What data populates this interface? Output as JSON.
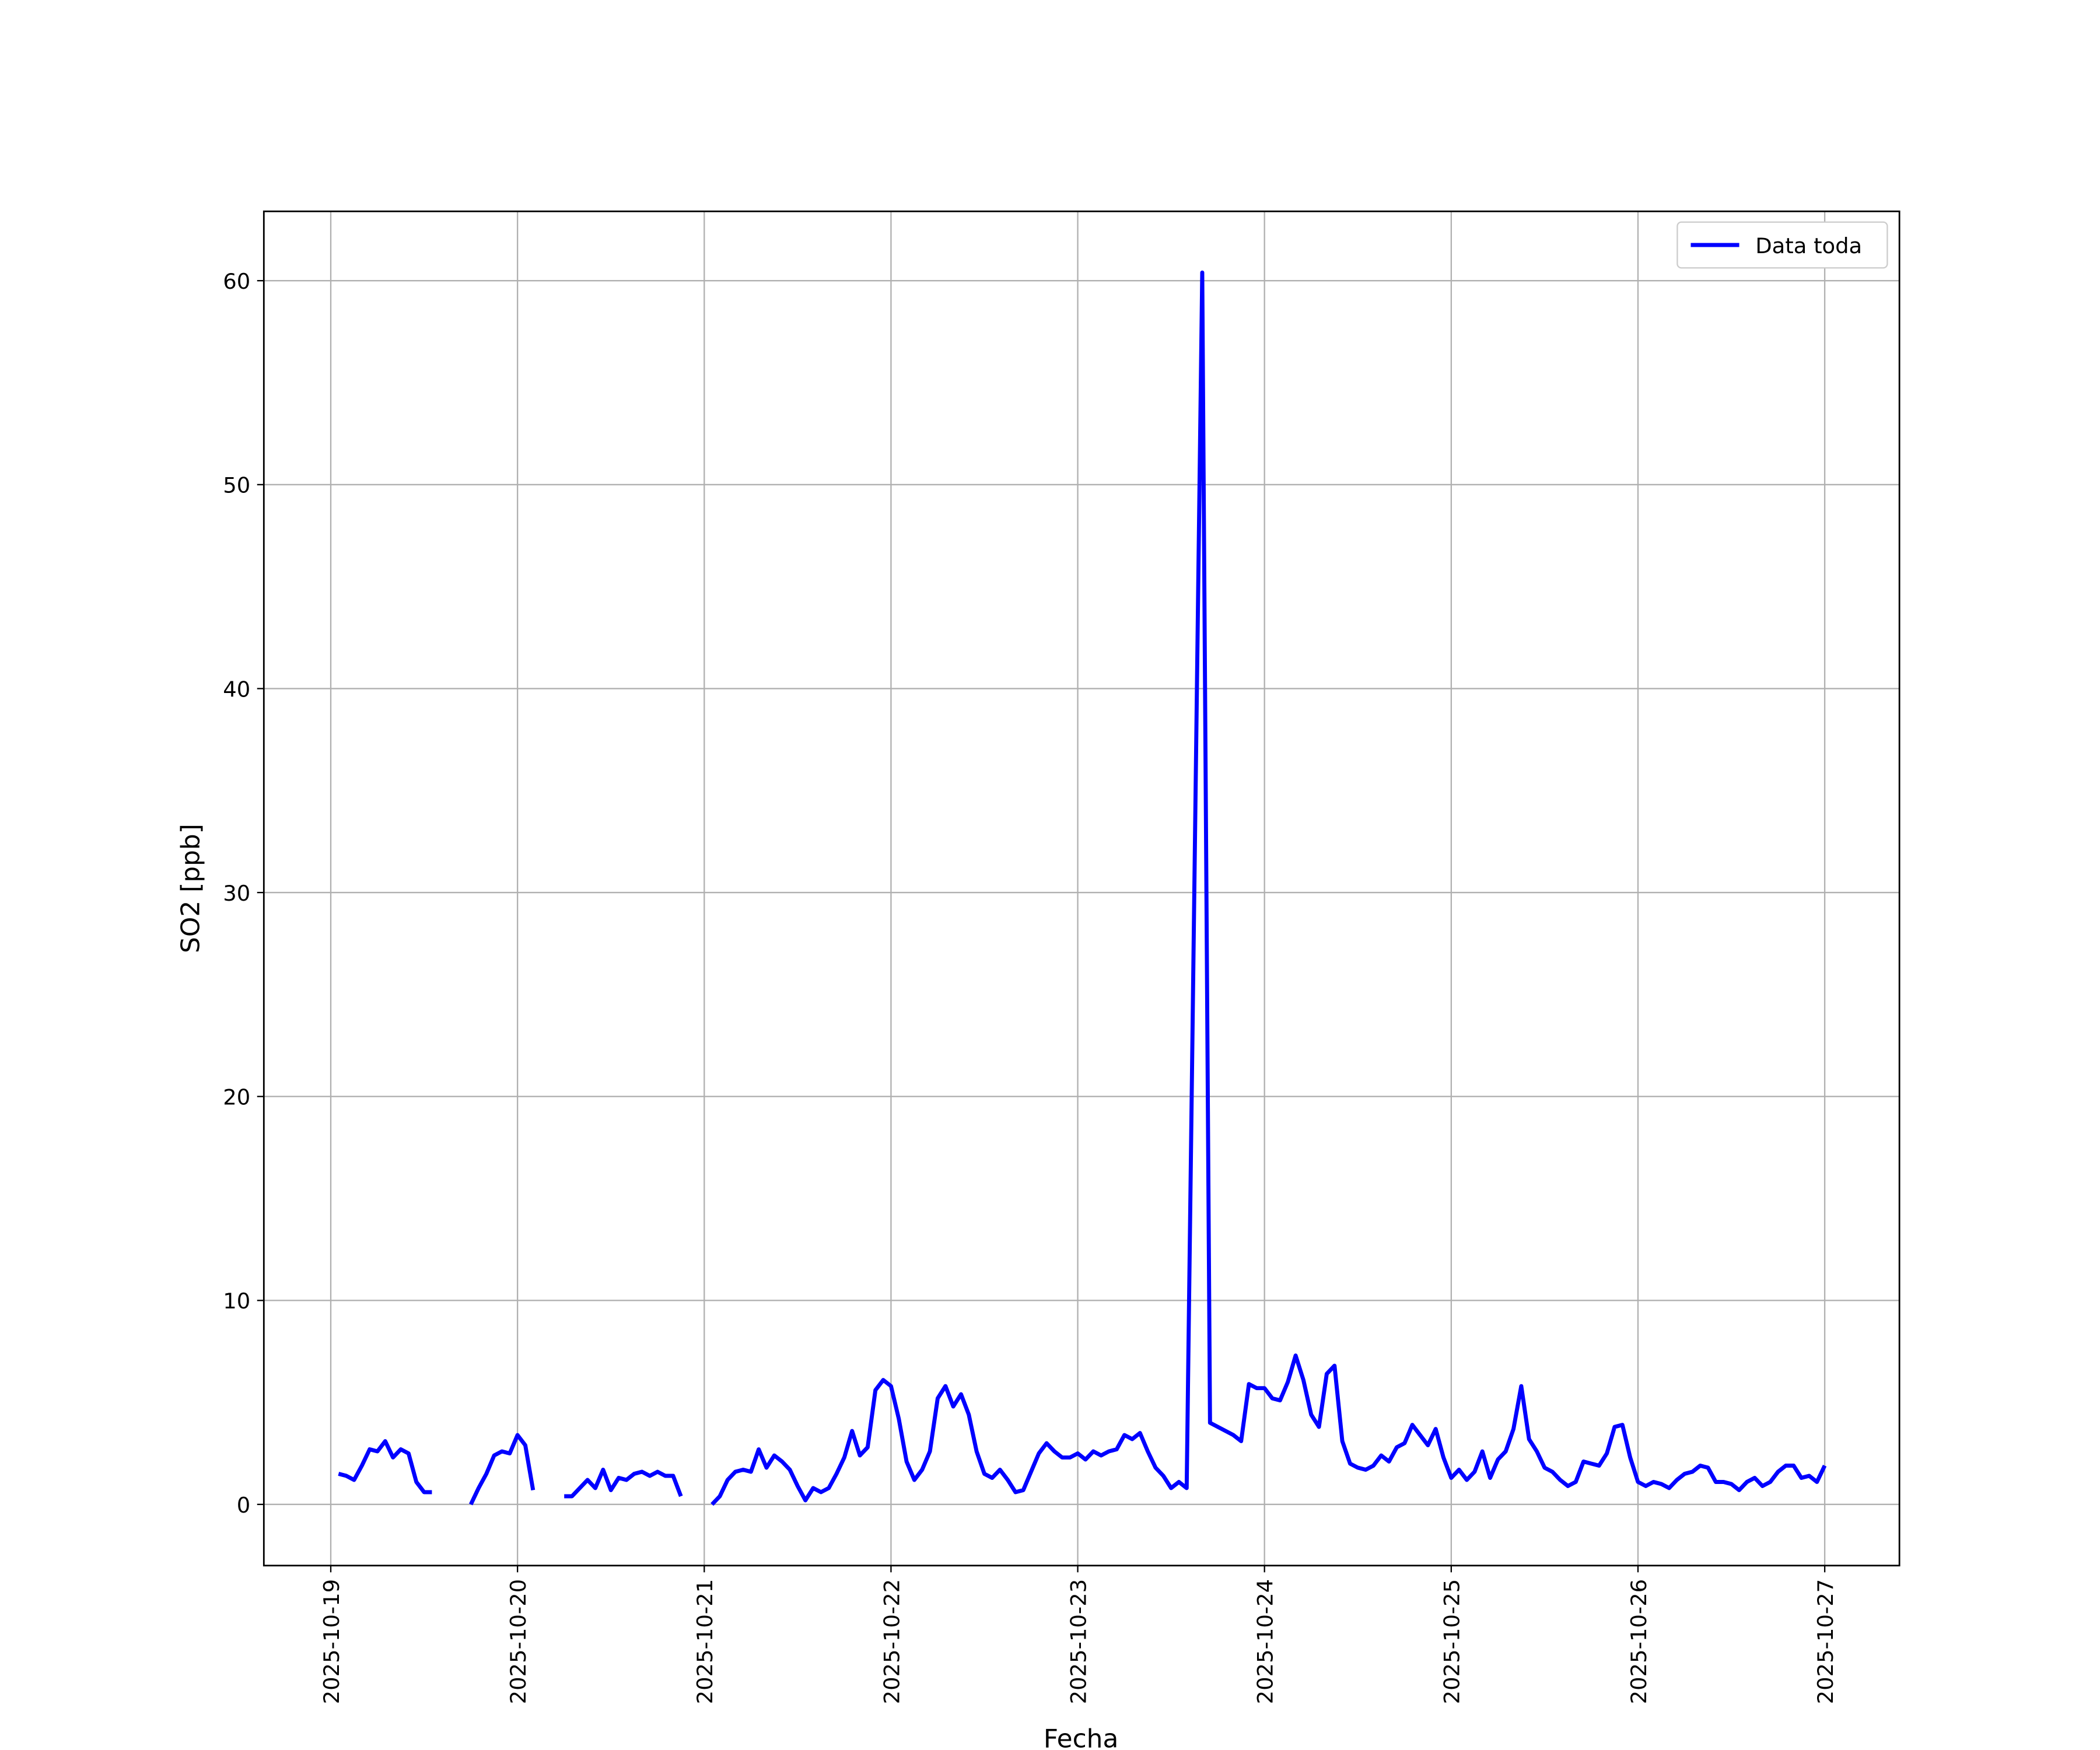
{
  "chart_data": {
    "type": "line",
    "x_label": "Fecha",
    "y_label": "SO2 [ppb]",
    "x": [
      "2025-10-19 01:00",
      "2025-10-19 02:00",
      "2025-10-19 03:00",
      "2025-10-19 04:00",
      "2025-10-19 05:00",
      "2025-10-19 06:00",
      "2025-10-19 07:00",
      "2025-10-19 08:00",
      "2025-10-19 09:00",
      "2025-10-19 10:00",
      "2025-10-19 11:00",
      "2025-10-19 12:00",
      "2025-10-19 13:00",
      "2025-10-19 14:00",
      "2025-10-19 18:00",
      "2025-10-19 19:00",
      "2025-10-19 20:00",
      "2025-10-19 21:00",
      "2025-10-19 22:00",
      "2025-10-19 23:00",
      "2025-10-20 00:00",
      "2025-10-20 01:00",
      "2025-10-20 02:00",
      "2025-10-20 03:00",
      "2025-10-20 06:00",
      "2025-10-20 07:00",
      "2025-10-20 08:00",
      "2025-10-20 09:00",
      "2025-10-20 10:00",
      "2025-10-20 11:00",
      "2025-10-20 12:00",
      "2025-10-20 13:00",
      "2025-10-20 14:00",
      "2025-10-20 15:00",
      "2025-10-20 16:00",
      "2025-10-20 17:00",
      "2025-10-20 18:00",
      "2025-10-20 19:00",
      "2025-10-20 20:00",
      "2025-10-20 21:00",
      "2025-10-20 22:00",
      "2025-10-21 01:00",
      "2025-10-21 02:00",
      "2025-10-21 03:00",
      "2025-10-21 04:00",
      "2025-10-21 05:00",
      "2025-10-21 06:00",
      "2025-10-21 07:00",
      "2025-10-21 08:00",
      "2025-10-21 09:00",
      "2025-10-21 10:00",
      "2025-10-21 11:00",
      "2025-10-21 12:00",
      "2025-10-21 13:00",
      "2025-10-21 14:00",
      "2025-10-21 15:00",
      "2025-10-21 16:00",
      "2025-10-21 17:00",
      "2025-10-21 18:00",
      "2025-10-21 19:00",
      "2025-10-21 20:00",
      "2025-10-21 21:00",
      "2025-10-21 22:00",
      "2025-10-21 23:00",
      "2025-10-22 00:00",
      "2025-10-22 01:00",
      "2025-10-22 02:00",
      "2025-10-22 03:00",
      "2025-10-22 04:00",
      "2025-10-22 05:00",
      "2025-10-22 06:00",
      "2025-10-22 07:00",
      "2025-10-22 08:00",
      "2025-10-22 09:00",
      "2025-10-22 10:00",
      "2025-10-22 11:00",
      "2025-10-22 12:00",
      "2025-10-22 13:00",
      "2025-10-22 14:00",
      "2025-10-22 15:00",
      "2025-10-22 16:00",
      "2025-10-22 17:00",
      "2025-10-22 18:00",
      "2025-10-22 19:00",
      "2025-10-22 20:00",
      "2025-10-22 21:00",
      "2025-10-22 22:00",
      "2025-10-22 23:00",
      "2025-10-23 00:00",
      "2025-10-23 01:00",
      "2025-10-23 02:00",
      "2025-10-23 03:00",
      "2025-10-23 04:00",
      "2025-10-23 05:00",
      "2025-10-23 06:00",
      "2025-10-23 07:00",
      "2025-10-23 08:00",
      "2025-10-23 09:00",
      "2025-10-23 10:00",
      "2025-10-23 11:00",
      "2025-10-23 12:00",
      "2025-10-23 13:00",
      "2025-10-23 14:00",
      "2025-10-23 16:00",
      "2025-10-23 17:00",
      "2025-10-23 18:00",
      "2025-10-23 19:00",
      "2025-10-23 20:00",
      "2025-10-23 21:00",
      "2025-10-23 22:00",
      "2025-10-23 23:00",
      "2025-10-24 00:00",
      "2025-10-24 01:00",
      "2025-10-24 02:00",
      "2025-10-24 03:00",
      "2025-10-24 04:00",
      "2025-10-24 05:00",
      "2025-10-24 06:00",
      "2025-10-24 07:00",
      "2025-10-24 08:00",
      "2025-10-24 09:00",
      "2025-10-24 10:00",
      "2025-10-24 11:00",
      "2025-10-24 12:00",
      "2025-10-24 13:00",
      "2025-10-24 14:00",
      "2025-10-24 15:00",
      "2025-10-24 16:00",
      "2025-10-24 17:00",
      "2025-10-24 18:00",
      "2025-10-24 19:00",
      "2025-10-24 20:00",
      "2025-10-24 21:00",
      "2025-10-24 22:00",
      "2025-10-24 23:00",
      "2025-10-25 00:00",
      "2025-10-25 01:00",
      "2025-10-25 02:00",
      "2025-10-25 03:00",
      "2025-10-25 04:00",
      "2025-10-25 05:00",
      "2025-10-25 06:00",
      "2025-10-25 07:00",
      "2025-10-25 08:00",
      "2025-10-25 09:00",
      "2025-10-25 10:00",
      "2025-10-25 11:00",
      "2025-10-25 12:00",
      "2025-10-25 13:00",
      "2025-10-25 14:00",
      "2025-10-25 15:00",
      "2025-10-25 16:00",
      "2025-10-25 17:00",
      "2025-10-25 18:00",
      "2025-10-25 19:00",
      "2025-10-25 20:00",
      "2025-10-25 21:00",
      "2025-10-25 22:00",
      "2025-10-25 23:00",
      "2025-10-26 00:00",
      "2025-10-26 01:00",
      "2025-10-26 02:00",
      "2025-10-26 03:00",
      "2025-10-26 04:00",
      "2025-10-26 05:00",
      "2025-10-26 06:00",
      "2025-10-26 07:00",
      "2025-10-26 08:00",
      "2025-10-26 09:00",
      "2025-10-26 10:00",
      "2025-10-26 11:00",
      "2025-10-26 12:00",
      "2025-10-26 13:00",
      "2025-10-26 14:00",
      "2025-10-26 15:00",
      "2025-10-26 16:00",
      "2025-10-26 17:00",
      "2025-10-26 18:00",
      "2025-10-26 19:00",
      "2025-10-26 20:00",
      "2025-10-26 21:00",
      "2025-10-26 22:00",
      "2025-10-26 23:00",
      "2025-10-27 00:00"
    ],
    "series": [
      {
        "name": "Data toda",
        "color": "#0000ff",
        "values": [
          1.5,
          1.4,
          1.2,
          1.9,
          2.7,
          2.6,
          3.1,
          2.3,
          2.7,
          2.5,
          1.1,
          0.6,
          0.6,
          null,
          0.0,
          0.8,
          1.5,
          2.4,
          2.6,
          2.5,
          3.4,
          2.9,
          0.7,
          null,
          0.4,
          0.4,
          0.8,
          1.2,
          0.8,
          1.7,
          0.7,
          1.3,
          1.2,
          1.5,
          1.6,
          1.4,
          1.6,
          1.4,
          1.4,
          0.4,
          null,
          0.0,
          0.4,
          1.2,
          1.6,
          1.7,
          1.6,
          2.7,
          1.8,
          2.4,
          2.1,
          1.7,
          0.9,
          0.2,
          0.8,
          0.6,
          0.8,
          1.5,
          2.3,
          3.6,
          2.4,
          2.8,
          5.6,
          6.1,
          5.8,
          4.2,
          2.1,
          1.2,
          1.7,
          2.6,
          5.2,
          5.8,
          4.8,
          5.4,
          4.4,
          2.6,
          1.5,
          1.3,
          1.7,
          1.2,
          0.6,
          0.7,
          1.6,
          2.5,
          3.0,
          2.6,
          2.3,
          2.3,
          2.5,
          2.2,
          2.6,
          2.4,
          2.6,
          2.7,
          3.4,
          3.2,
          3.5,
          2.6,
          1.8,
          1.4,
          0.8,
          1.1,
          0.8,
          60.4,
          4.0,
          3.8,
          3.6,
          3.4,
          3.1,
          5.9,
          5.7,
          5.7,
          5.2,
          5.1,
          6.0,
          7.3,
          6.1,
          4.4,
          3.8,
          6.4,
          6.8,
          3.1,
          2.0,
          1.8,
          1.7,
          1.9,
          2.4,
          2.1,
          2.8,
          3.0,
          3.9,
          3.4,
          2.9,
          3.7,
          2.3,
          1.3,
          1.7,
          1.2,
          1.6,
          2.6,
          1.3,
          2.2,
          2.6,
          3.7,
          5.8,
          3.2,
          2.6,
          1.8,
          1.6,
          1.2,
          0.9,
          1.1,
          2.1,
          2.0,
          1.9,
          2.5,
          3.8,
          3.9,
          2.3,
          1.1,
          0.9,
          1.1,
          1.0,
          0.8,
          1.2,
          1.5,
          1.6,
          1.9,
          1.8,
          1.1,
          1.1,
          1.0,
          0.7,
          1.1,
          1.3,
          0.9,
          1.1,
          1.6,
          1.9,
          1.9,
          1.3,
          1.4,
          1.1,
          1.9
        ]
      }
    ],
    "xlim": [
      "2025-10-18 15:24",
      "2025-10-27 09:36"
    ],
    "xticks": [
      "2025-10-19",
      "2025-10-20",
      "2025-10-21",
      "2025-10-22",
      "2025-10-23",
      "2025-10-24",
      "2025-10-25",
      "2025-10-26",
      "2025-10-27"
    ],
    "ylim": [
      -3,
      63.4
    ],
    "yticks": [
      0,
      10,
      20,
      30,
      40,
      50,
      60
    ],
    "grid": true,
    "legend": "upper right"
  }
}
